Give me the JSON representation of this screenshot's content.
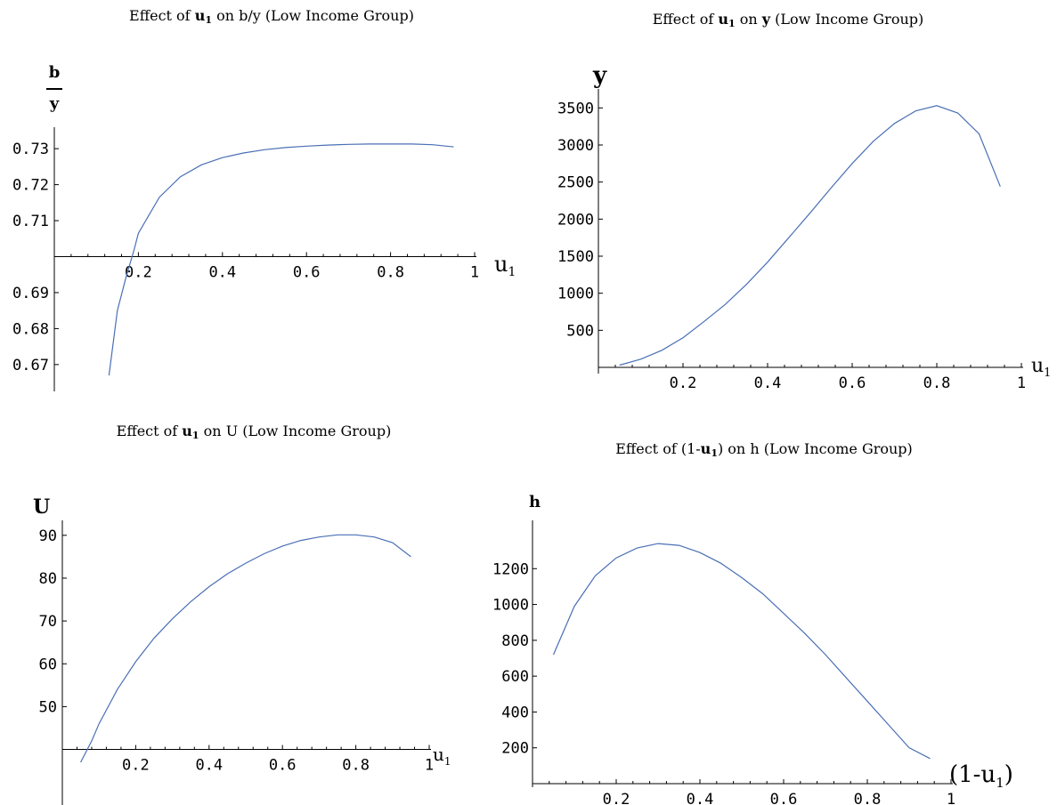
{
  "chart_data": [
    {
      "type": "line",
      "title": "Effect of u1 on b/y (Low Income Group)",
      "title_parts": [
        "Effect of ",
        "u",
        "1",
        " on b/y (Low Income Group)"
      ],
      "xlabel": "u1",
      "ylabel_top": "b",
      "ylabel_bottom": "y",
      "xlim": [
        0,
        1
      ],
      "ylim": [
        0.667,
        0.733
      ],
      "x_axis_crosses_y": 0.7,
      "x_ticks": [
        0.2,
        0.4,
        0.6,
        0.8,
        1
      ],
      "x_tick_labels": [
        "0.2",
        "0.4",
        "0.6",
        "0.8",
        "1"
      ],
      "y_ticks": [
        0.67,
        0.68,
        0.69,
        0.71,
        0.72,
        0.73
      ],
      "y_tick_labels": [
        "0.67",
        "0.68",
        "0.69",
        "0.71",
        "0.72",
        "0.73"
      ],
      "series": [
        {
          "x": [
            0.13,
            0.15,
            0.17,
            0.19,
            0.2,
            0.25,
            0.3,
            0.35,
            0.4,
            0.45,
            0.5,
            0.55,
            0.6,
            0.65,
            0.7,
            0.75,
            0.8,
            0.85,
            0.9,
            0.95
          ],
          "y": [
            0.667,
            0.685,
            0.694,
            0.702,
            0.7065,
            0.7165,
            0.7222,
            0.7255,
            0.7275,
            0.7288,
            0.7297,
            0.7303,
            0.7307,
            0.731,
            0.7312,
            0.7313,
            0.7313,
            0.7313,
            0.7311,
            0.7305
          ]
        }
      ]
    },
    {
      "type": "line",
      "title": "Effect of u1 on y (Low Income Group)",
      "title_parts": [
        "Effect of ",
        "u",
        "1",
        " on ",
        "y",
        " (Low Income Group)"
      ],
      "xlabel": "u1",
      "ylabel": "y",
      "xlim": [
        0,
        1
      ],
      "ylim": [
        0,
        3600
      ],
      "x_ticks": [
        0.2,
        0.4,
        0.6,
        0.8,
        1
      ],
      "x_tick_labels": [
        "0.2",
        "0.4",
        "0.6",
        "0.8",
        "1"
      ],
      "y_ticks": [
        500,
        1000,
        1500,
        2000,
        2500,
        3000,
        3500
      ],
      "y_tick_labels": [
        "500",
        "1000",
        "1500",
        "2000",
        "2500",
        "3000",
        "3500"
      ],
      "series": [
        {
          "x": [
            0.05,
            0.1,
            0.15,
            0.2,
            0.25,
            0.3,
            0.35,
            0.4,
            0.45,
            0.5,
            0.55,
            0.6,
            0.65,
            0.7,
            0.75,
            0.8,
            0.85,
            0.9,
            0.95
          ],
          "y": [
            30,
            110,
            230,
            400,
            620,
            850,
            1120,
            1420,
            1750,
            2080,
            2420,
            2750,
            3050,
            3290,
            3460,
            3530,
            3430,
            3150,
            2440
          ]
        }
      ]
    },
    {
      "type": "line",
      "title": "Effect of u1 on U (Low Income Group)",
      "title_parts": [
        "Effect of ",
        "u",
        "1",
        " on U (Low Income Group)"
      ],
      "xlabel": "u1",
      "ylabel": "U",
      "xlim": [
        0,
        1
      ],
      "ylim": [
        37,
        91
      ],
      "x_axis_crosses_y": 40,
      "x_ticks": [
        0.2,
        0.4,
        0.6,
        0.8,
        1
      ],
      "x_tick_labels": [
        "0.2",
        "0.4",
        "0.6",
        "0.8",
        "1"
      ],
      "y_ticks": [
        50,
        60,
        70,
        80,
        90
      ],
      "y_tick_labels": [
        "50",
        "60",
        "70",
        "80",
        "90"
      ],
      "series": [
        {
          "x": [
            0.05,
            0.08,
            0.1,
            0.15,
            0.2,
            0.25,
            0.3,
            0.35,
            0.4,
            0.45,
            0.5,
            0.55,
            0.6,
            0.65,
            0.7,
            0.75,
            0.8,
            0.85,
            0.9,
            0.95
          ],
          "y": [
            37,
            42,
            46,
            54,
            60.5,
            66,
            70.5,
            74.5,
            78,
            81,
            83.5,
            85.7,
            87.5,
            88.8,
            89.6,
            90.1,
            90.1,
            89.6,
            88.3,
            85
          ]
        }
      ]
    },
    {
      "type": "line",
      "title": "Effect of (1-u1) on h (Low Income Group)",
      "title_parts": [
        "Effect of (1-",
        "u",
        "1",
        ") on h (Low Income Group)"
      ],
      "xlabel": "(1-u1)",
      "ylabel": "h",
      "xlim": [
        0,
        1
      ],
      "ylim": [
        0,
        1400
      ],
      "x_ticks": [
        0.2,
        0.4,
        0.6,
        0.8,
        1
      ],
      "x_tick_labels": [
        "0.2",
        "0.4",
        "0.6",
        "0.8",
        "1"
      ],
      "y_ticks": [
        200,
        400,
        600,
        800,
        1000,
        1200
      ],
      "y_tick_labels": [
        "200",
        "400",
        "600",
        "800",
        "1000",
        "1200"
      ],
      "series": [
        {
          "x": [
            0.05,
            0.1,
            0.15,
            0.2,
            0.25,
            0.3,
            0.35,
            0.4,
            0.45,
            0.5,
            0.55,
            0.6,
            0.65,
            0.7,
            0.75,
            0.8,
            0.85,
            0.9,
            0.95
          ],
          "y": [
            720,
            990,
            1160,
            1260,
            1315,
            1340,
            1330,
            1290,
            1230,
            1150,
            1060,
            950,
            840,
            720,
            590,
            460,
            330,
            200,
            140
          ]
        }
      ]
    }
  ]
}
